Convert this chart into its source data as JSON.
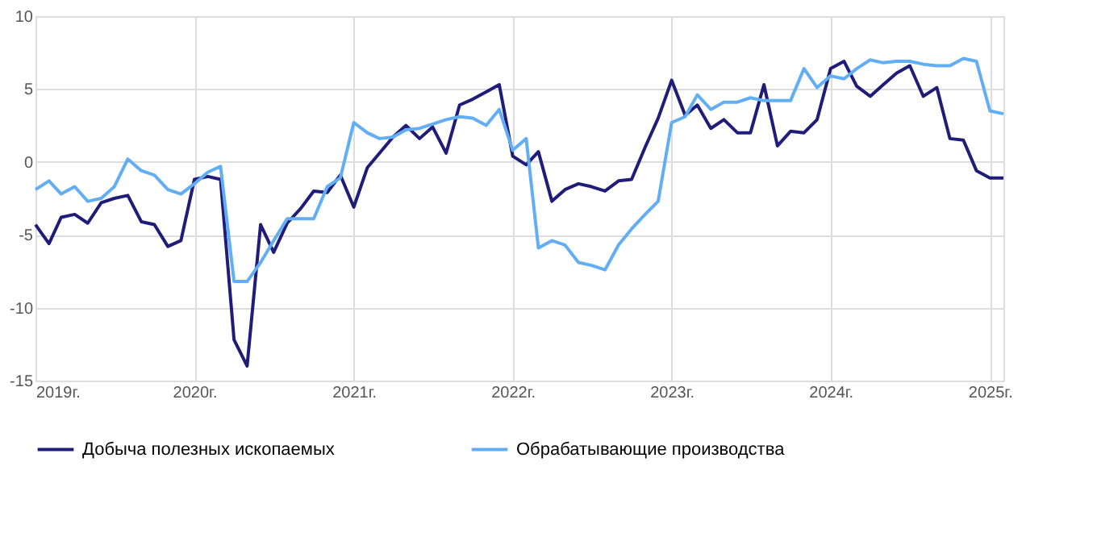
{
  "chart_data": {
    "type": "line",
    "x": [
      "2019-01",
      "2019-02",
      "2019-03",
      "2019-04",
      "2019-05",
      "2019-06",
      "2019-07",
      "2019-08",
      "2019-09",
      "2019-10",
      "2019-11",
      "2019-12",
      "2020-01",
      "2020-02",
      "2020-03",
      "2020-04",
      "2020-05",
      "2020-06",
      "2020-07",
      "2020-08",
      "2020-09",
      "2020-10",
      "2020-11",
      "2020-12",
      "2021-01",
      "2021-02",
      "2021-03",
      "2021-04",
      "2021-05",
      "2021-06",
      "2021-07",
      "2021-08",
      "2021-09",
      "2021-10",
      "2021-11",
      "2021-12",
      "2022-01",
      "2022-02",
      "2022-03",
      "2022-04",
      "2022-05",
      "2022-06",
      "2022-07",
      "2022-08",
      "2022-09",
      "2022-10",
      "2022-11",
      "2022-12",
      "2023-01",
      "2023-02",
      "2023-03",
      "2023-04",
      "2023-05",
      "2023-06",
      "2023-07",
      "2023-08",
      "2023-09",
      "2023-10",
      "2023-11",
      "2023-12",
      "2024-01",
      "2024-02",
      "2024-03",
      "2024-04",
      "2024-05",
      "2024-06",
      "2024-07",
      "2024-08",
      "2024-09",
      "2024-10",
      "2024-11",
      "2024-12",
      "2025-01",
      "2025-02"
    ],
    "series": [
      {
        "name": "Добыча полезных ископаемых",
        "color": "#1f1c7a",
        "values": [
          -4.3,
          -5.6,
          -3.8,
          -3.6,
          -4.2,
          -2.8,
          -2.5,
          -2.3,
          -4.1,
          -4.3,
          -5.8,
          -5.4,
          -1.2,
          -1.0,
          -1.2,
          -12.2,
          -14.0,
          -4.3,
          -6.2,
          -4.2,
          -3.2,
          -2.0,
          -2.1,
          -0.9,
          -3.1,
          -0.4,
          0.6,
          1.7,
          2.5,
          1.6,
          2.4,
          0.6,
          3.9,
          4.3,
          4.8,
          5.3,
          0.4,
          -0.2,
          0.7,
          -2.7,
          -1.9,
          -1.5,
          -1.7,
          -2.0,
          -1.3,
          -1.2,
          1.0,
          3.0,
          5.6,
          3.2,
          3.9,
          2.3,
          2.9,
          2.0,
          2.0,
          5.3,
          1.1,
          2.1,
          2.0,
          2.9,
          6.4,
          6.9,
          5.2,
          4.5,
          5.3,
          6.1,
          6.6,
          4.5,
          5.1,
          1.6,
          1.5,
          -0.6,
          -1.1,
          -1.1
        ]
      },
      {
        "name": "Обрабатывающие производства",
        "color": "#62aef5",
        "values": [
          -1.9,
          -1.3,
          -2.2,
          -1.7,
          -2.7,
          -2.5,
          -1.7,
          0.2,
          -0.6,
          -0.9,
          -1.9,
          -2.2,
          -1.5,
          -0.7,
          -0.3,
          -8.2,
          -8.2,
          -6.9,
          -5.4,
          -3.9,
          -3.9,
          -3.9,
          -1.7,
          -1.1,
          2.7,
          2.0,
          1.6,
          1.7,
          2.2,
          2.3,
          2.6,
          2.9,
          3.1,
          3.0,
          2.5,
          3.6,
          0.8,
          1.6,
          -5.9,
          -5.4,
          -5.7,
          -6.9,
          -7.1,
          -7.4,
          -5.7,
          -4.6,
          -3.6,
          -2.7,
          2.7,
          3.1,
          4.6,
          3.6,
          4.1,
          4.1,
          4.4,
          4.2,
          4.2,
          4.2,
          6.4,
          5.1,
          5.9,
          5.7,
          6.4,
          7.0,
          6.8,
          6.9,
          6.9,
          6.7,
          6.6,
          6.6,
          7.1,
          6.9,
          3.5,
          3.3
        ]
      }
    ],
    "xlim": [
      "2019-01",
      "2025-02"
    ],
    "xticks": [
      {
        "value": "2019-01",
        "label": "2019г."
      },
      {
        "value": "2020-01",
        "label": "2020г."
      },
      {
        "value": "2021-01",
        "label": "2021г."
      },
      {
        "value": "2022-01",
        "label": "2022г."
      },
      {
        "value": "2023-01",
        "label": "2023г."
      },
      {
        "value": "2024-01",
        "label": "2024г."
      },
      {
        "value": "2025-01",
        "label": "2025г."
      }
    ],
    "ylim": [
      -15,
      10
    ],
    "yticks": [
      -15,
      -10,
      -5,
      0,
      5,
      10
    ],
    "grid": true,
    "legend": "bottom",
    "line_style": "solid",
    "marker": "none"
  }
}
